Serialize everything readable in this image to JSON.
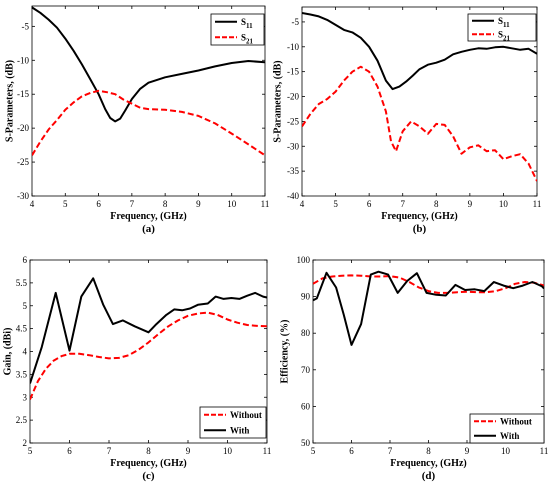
{
  "chart_data": [
    {
      "type": "line",
      "panel_label": "(a)",
      "xlabel": "Frequency, (GHz)",
      "ylabel": "S-Parameters, (dB)",
      "xlim": [
        4,
        11
      ],
      "ylim": [
        -30,
        -2
      ],
      "xticks": [
        "4",
        "5",
        "6",
        "7",
        "8",
        "9",
        "10",
        "11"
      ],
      "yticks": [
        "-30",
        "-25",
        "-20",
        "-15",
        "-10",
        "-5"
      ],
      "legend_position": "top-right",
      "series": [
        {
          "name": "S11",
          "name_main": "S",
          "name_sub": "11",
          "color": "#000000",
          "dash": "solid",
          "x": [
            4,
            4.25,
            4.5,
            4.75,
            5,
            5.25,
            5.5,
            5.75,
            6,
            6.2,
            6.35,
            6.5,
            6.65,
            6.8,
            7,
            7.25,
            7.5,
            8,
            8.5,
            9,
            9.5,
            10,
            10.5,
            11
          ],
          "y": [
            -2.2,
            -3,
            -4,
            -5.2,
            -6.8,
            -8.6,
            -10.6,
            -12.8,
            -15,
            -17.2,
            -18.5,
            -19,
            -18.6,
            -17.4,
            -15.7,
            -14.2,
            -13.3,
            -12.5,
            -12,
            -11.5,
            -10.9,
            -10.4,
            -10.1,
            -10.3
          ]
        },
        {
          "name": "S21",
          "name_main": "S",
          "name_sub": "21",
          "color": "#ff0000",
          "dash": "dashed",
          "x": [
            4,
            4.25,
            4.5,
            4.75,
            5,
            5.25,
            5.5,
            5.75,
            6,
            6.25,
            6.5,
            6.75,
            7,
            7.25,
            7.5,
            8,
            8.5,
            9,
            9.5,
            10,
            10.5,
            11
          ],
          "y": [
            -24,
            -22,
            -20.2,
            -18.8,
            -17.3,
            -16.2,
            -15.3,
            -14.8,
            -14.5,
            -14.7,
            -15,
            -15.8,
            -16.4,
            -17,
            -17.2,
            -17.3,
            -17.6,
            -18.2,
            -19.3,
            -20.8,
            -22.4,
            -24
          ]
        }
      ]
    },
    {
      "type": "line",
      "panel_label": "(b)",
      "xlabel": "Frequency, (GHz)",
      "ylabel": "S-Parameters, (dB)",
      "xlim": [
        4,
        11
      ],
      "ylim": [
        -40,
        -2
      ],
      "xticks": [
        "4",
        "5",
        "6",
        "7",
        "8",
        "9",
        "10",
        "11"
      ],
      "yticks": [
        "-40",
        "-35",
        "-30",
        "-25",
        "-20",
        "-15",
        "-10",
        "-5"
      ],
      "legend_position": "top-right",
      "series": [
        {
          "name": "S11",
          "name_main": "S",
          "name_sub": "11",
          "color": "#000000",
          "dash": "solid",
          "x": [
            4,
            4.25,
            4.5,
            4.75,
            5,
            5.25,
            5.5,
            5.75,
            6,
            6.25,
            6.5,
            6.7,
            6.9,
            7.1,
            7.3,
            7.5,
            7.75,
            8,
            8.25,
            8.5,
            8.75,
            9,
            9.25,
            9.5,
            9.75,
            10,
            10.25,
            10.5,
            10.75,
            11
          ],
          "y": [
            -3.2,
            -3.5,
            -3.9,
            -4.6,
            -5.6,
            -6.6,
            -7.1,
            -8.2,
            -10,
            -12.8,
            -16.8,
            -18.5,
            -18,
            -17,
            -15.8,
            -14.5,
            -13.6,
            -13.2,
            -12.6,
            -11.5,
            -11,
            -10.6,
            -10.3,
            -10.4,
            -10.1,
            -10,
            -10.3,
            -10.6,
            -10.4,
            -11.4
          ]
        },
        {
          "name": "S21",
          "name_main": "S",
          "name_sub": "21",
          "color": "#ff0000",
          "dash": "dashed",
          "x": [
            4,
            4.25,
            4.5,
            4.75,
            5,
            5.25,
            5.5,
            5.75,
            6,
            6.25,
            6.5,
            6.65,
            6.8,
            7,
            7.25,
            7.5,
            7.75,
            8,
            8.25,
            8.5,
            8.75,
            9,
            9.25,
            9.5,
            9.75,
            10,
            10.25,
            10.5,
            10.75,
            11
          ],
          "y": [
            -26,
            -23.5,
            -21.5,
            -20.5,
            -19,
            -16.8,
            -15,
            -14,
            -15,
            -18,
            -23,
            -29,
            -31,
            -27,
            -25,
            -26,
            -27.5,
            -25.5,
            -25.7,
            -28,
            -31.5,
            -30.2,
            -29.8,
            -31,
            -30.8,
            -32.6,
            -32,
            -31.6,
            -33.5,
            -37
          ]
        }
      ]
    },
    {
      "type": "line",
      "panel_label": "(c)",
      "xlabel": "Frequency, (GHz)",
      "ylabel": "Gain, (dBi)",
      "xlim": [
        5,
        11
      ],
      "ylim": [
        2,
        6
      ],
      "xticks": [
        "5",
        "6",
        "7",
        "8",
        "9",
        "10",
        "11"
      ],
      "yticks": [
        "2",
        "2.5",
        "3",
        "3.5",
        "4",
        "4.5",
        "5",
        "5.5",
        "6"
      ],
      "legend_position": "bottom-right",
      "series": [
        {
          "name": "Without",
          "color": "#ff0000",
          "dash": "dashed",
          "x": [
            5,
            5.2,
            5.4,
            5.6,
            5.8,
            6,
            6.25,
            6.5,
            6.75,
            7,
            7.25,
            7.5,
            7.75,
            8,
            8.25,
            8.5,
            8.75,
            9,
            9.25,
            9.5,
            9.75,
            10,
            10.25,
            10.5,
            10.75,
            11
          ],
          "y": [
            2.95,
            3.35,
            3.62,
            3.8,
            3.9,
            3.95,
            3.95,
            3.92,
            3.88,
            3.85,
            3.86,
            3.92,
            4.04,
            4.2,
            4.38,
            4.55,
            4.68,
            4.78,
            4.83,
            4.85,
            4.8,
            4.7,
            4.63,
            4.58,
            4.56,
            4.55
          ]
        },
        {
          "name": "With",
          "color": "#000000",
          "dash": "solid",
          "x": [
            5,
            5.3,
            5.65,
            6,
            6.3,
            6.6,
            6.85,
            7.1,
            7.35,
            7.65,
            8,
            8.2,
            8.45,
            8.65,
            8.85,
            9.05,
            9.25,
            9.5,
            9.7,
            9.9,
            10.1,
            10.3,
            10.5,
            10.7,
            10.9,
            11
          ],
          "y": [
            3.3,
            4.1,
            5.28,
            4.02,
            5.2,
            5.6,
            5.03,
            4.6,
            4.68,
            4.55,
            4.42,
            4.6,
            4.8,
            4.92,
            4.9,
            4.94,
            5.02,
            5.05,
            5.2,
            5.15,
            5.17,
            5.15,
            5.22,
            5.28,
            5.2,
            5.18
          ]
        }
      ]
    },
    {
      "type": "line",
      "panel_label": "(d)",
      "xlabel": "Frequency, (GHz)",
      "ylabel": "Efficiency, (%)",
      "xlim": [
        5,
        11
      ],
      "ylim": [
        50,
        100
      ],
      "xticks": [
        "5",
        "6",
        "7",
        "8",
        "9",
        "10",
        "11"
      ],
      "yticks": [
        "50",
        "60",
        "70",
        "80",
        "90",
        "100"
      ],
      "legend_position": "bottom-right",
      "series": [
        {
          "name": "Without",
          "color": "#ff0000",
          "dash": "dashed",
          "x": [
            5,
            5.25,
            5.5,
            5.75,
            6,
            6.25,
            6.5,
            6.75,
            7,
            7.25,
            7.5,
            7.75,
            8,
            8.25,
            8.5,
            8.75,
            9,
            9.25,
            9.5,
            9.75,
            10,
            10.25,
            10.5,
            10.75,
            11
          ],
          "y": [
            93.5,
            95,
            95.5,
            95.7,
            95.8,
            95.7,
            95.5,
            95.5,
            95.6,
            95.2,
            94,
            92.5,
            91.5,
            91,
            91,
            91.2,
            91.3,
            91.2,
            91.2,
            91.5,
            92.3,
            93.5,
            94,
            93.8,
            93
          ]
        },
        {
          "name": "With",
          "color": "#000000",
          "dash": "solid",
          "x": [
            5,
            5.1,
            5.35,
            5.6,
            5.8,
            6,
            6.25,
            6.5,
            6.7,
            6.95,
            7.2,
            7.45,
            7.7,
            7.95,
            8.2,
            8.45,
            8.7,
            8.95,
            9.2,
            9.45,
            9.7,
            9.95,
            10.2,
            10.45,
            10.7,
            10.95,
            11
          ],
          "y": [
            89,
            89.5,
            96.5,
            92.5,
            85,
            76.8,
            82.5,
            96,
            96.8,
            96,
            91,
            94.3,
            96.4,
            91,
            90.5,
            90.3,
            93.2,
            91.8,
            92,
            91.5,
            94,
            93,
            92.3,
            93,
            94,
            92.8,
            92.2
          ]
        }
      ]
    }
  ]
}
